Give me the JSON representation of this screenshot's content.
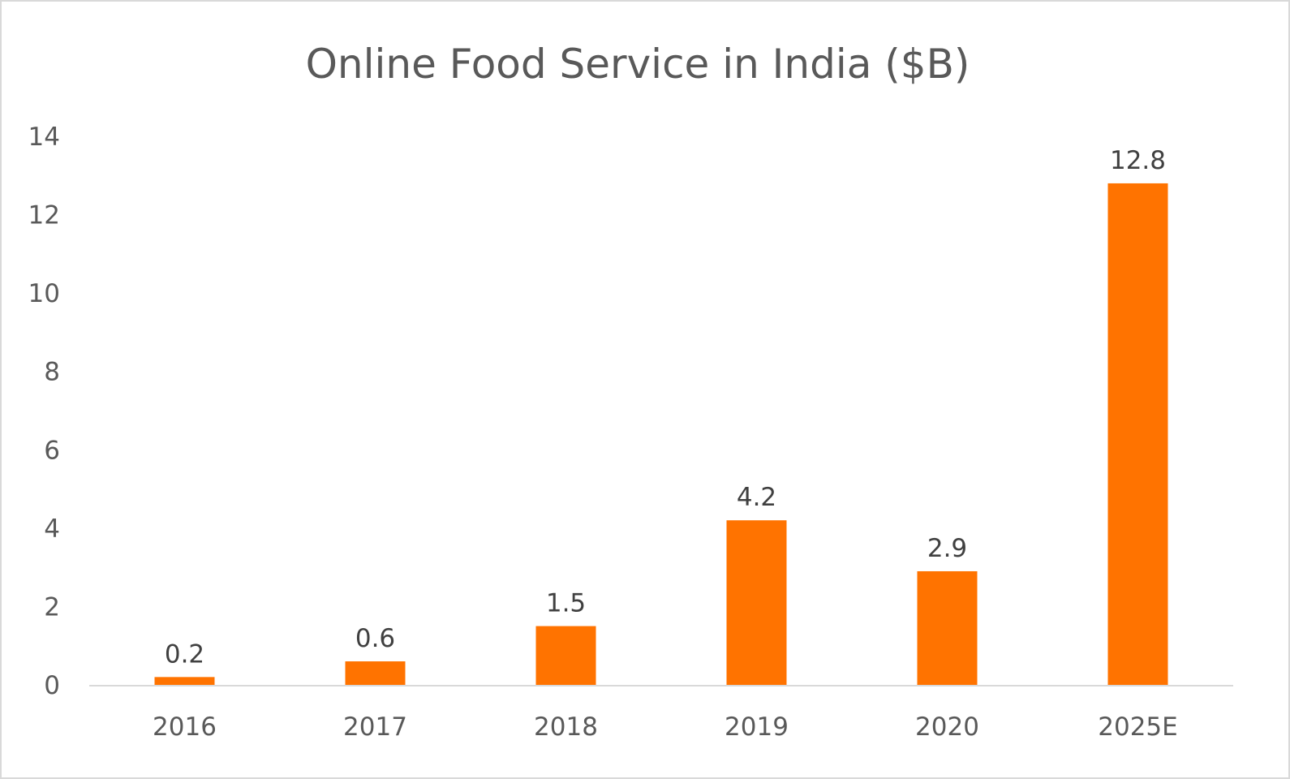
{
  "chart_data": {
    "type": "bar",
    "title": "Online Food Service in India ($B)",
    "xlabel": "",
    "ylabel": "",
    "categories": [
      "2016",
      "2017",
      "2018",
      "2019",
      "2020",
      "2025E"
    ],
    "values": [
      0.2,
      0.6,
      1.5,
      4.2,
      2.9,
      12.8
    ],
    "data_labels": [
      "0.2",
      "0.6",
      "1.5",
      "4.2",
      "2.9",
      "12.8"
    ],
    "y_ticks": [
      "0",
      "2",
      "4",
      "6",
      "8",
      "10",
      "12",
      "14"
    ],
    "ylim": [
      0,
      14
    ],
    "grid": false,
    "legend": "none",
    "bar_color": "#ff7300",
    "axis_color": "#d9d9d9",
    "text_color": "#595959"
  }
}
